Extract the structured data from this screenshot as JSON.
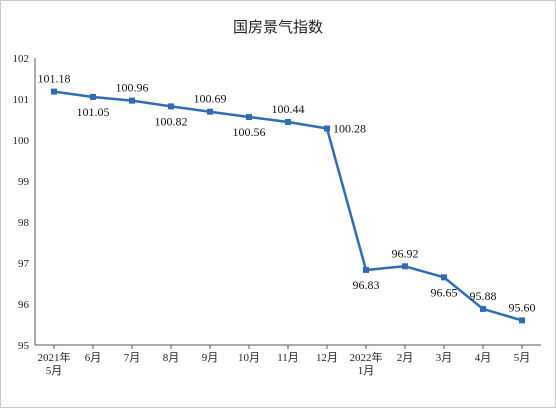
{
  "chart_data": {
    "type": "line",
    "title": "国房景气指数",
    "xlabel": "",
    "ylabel": "",
    "ylim": [
      95,
      102
    ],
    "yticks": [
      "95",
      "96",
      "97",
      "98",
      "99",
      "100",
      "101",
      "102"
    ],
    "grid": false,
    "legend": "none",
    "line_color": "#2e6db4",
    "categories": [
      [
        "2021年",
        "5月"
      ],
      [
        "6月"
      ],
      [
        "7月"
      ],
      [
        "8月"
      ],
      [
        "9月"
      ],
      [
        "10月"
      ],
      [
        "11月"
      ],
      [
        "12月"
      ],
      [
        "2022年",
        "1月"
      ],
      [
        "2月"
      ],
      [
        "3月"
      ],
      [
        "4月"
      ],
      [
        "5月"
      ]
    ],
    "values": [
      101.18,
      101.05,
      100.96,
      100.82,
      100.69,
      100.56,
      100.44,
      100.28,
      96.83,
      96.92,
      96.65,
      95.88,
      95.6
    ],
    "data_labels": [
      "101.18",
      "101.05",
      "100.96",
      "100.82",
      "100.69",
      "100.56",
      "100.44",
      "100.28",
      "96.83",
      "96.92",
      "96.65",
      "95.88",
      "95.60"
    ]
  }
}
